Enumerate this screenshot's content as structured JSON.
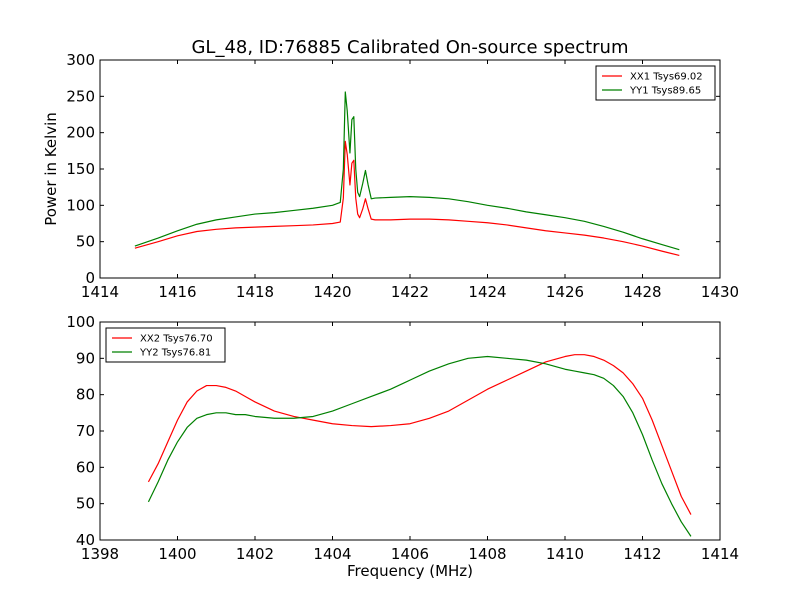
{
  "figure": {
    "title": "GL_48, ID:76885 Calibrated On-source spectrum"
  },
  "chart_data": [
    {
      "type": "line",
      "title": "GL_48, ID:76885 Calibrated On-source spectrum",
      "xlabel": "",
      "ylabel": "Power in Kelvin",
      "xlim": [
        1414,
        1430
      ],
      "ylim": [
        0,
        300
      ],
      "xticks": [
        1414,
        1416,
        1418,
        1420,
        1422,
        1424,
        1426,
        1428,
        1430
      ],
      "yticks": [
        0,
        50,
        100,
        150,
        200,
        250,
        300
      ],
      "grid": false,
      "legend_position": "top-right",
      "series": [
        {
          "name": "XX1 Tsys69.02",
          "color": "#ff0000",
          "x": [
            1414.9,
            1415.5,
            1416,
            1416.5,
            1417,
            1417.5,
            1418,
            1418.5,
            1419,
            1419.5,
            1420,
            1420.2,
            1420.28,
            1420.33,
            1420.38,
            1420.45,
            1420.5,
            1420.55,
            1420.6,
            1420.65,
            1420.7,
            1420.78,
            1420.85,
            1420.92,
            1421.0,
            1421.1,
            1421.5,
            1422,
            1422.5,
            1423,
            1423.5,
            1424,
            1424.5,
            1425,
            1425.5,
            1426,
            1426.5,
            1427,
            1427.5,
            1428,
            1428.5,
            1428.95
          ],
          "values": [
            41,
            50,
            58,
            64,
            67,
            69,
            70,
            71,
            72,
            73,
            75,
            77,
            110,
            188,
            170,
            128,
            158,
            162,
            110,
            88,
            83,
            95,
            109,
            95,
            81,
            80,
            80,
            81,
            81,
            80,
            78,
            76,
            73,
            69,
            65,
            62,
            59,
            55,
            50,
            44,
            37,
            31
          ]
        },
        {
          "name": "YY1 Tsys89.65",
          "color": "#008000",
          "x": [
            1414.9,
            1415.5,
            1416,
            1416.5,
            1417,
            1417.5,
            1418,
            1418.5,
            1419,
            1419.5,
            1420,
            1420.2,
            1420.28,
            1420.33,
            1420.38,
            1420.45,
            1420.5,
            1420.55,
            1420.6,
            1420.65,
            1420.7,
            1420.78,
            1420.85,
            1420.92,
            1421.0,
            1421.1,
            1421.5,
            1422,
            1422.5,
            1423,
            1423.5,
            1424,
            1424.5,
            1425,
            1425.5,
            1426,
            1426.5,
            1427,
            1427.5,
            1428,
            1428.5,
            1428.95
          ],
          "values": [
            44,
            55,
            65,
            74,
            80,
            84,
            88,
            90,
            93,
            96,
            100,
            104,
            150,
            256,
            230,
            172,
            218,
            222,
            150,
            118,
            112,
            130,
            148,
            128,
            109,
            110,
            111,
            112,
            111,
            109,
            105,
            100,
            96,
            91,
            87,
            83,
            78,
            71,
            63,
            54,
            46,
            39
          ]
        }
      ]
    },
    {
      "type": "line",
      "title": "",
      "xlabel": "Frequency (MHz)",
      "ylabel": "",
      "xlim": [
        1398,
        1414
      ],
      "ylim": [
        40,
        100
      ],
      "xticks": [
        1398,
        1400,
        1402,
        1404,
        1406,
        1408,
        1410,
        1412,
        1414
      ],
      "yticks": [
        40,
        50,
        60,
        70,
        80,
        90,
        100
      ],
      "grid": false,
      "legend_position": "top-left",
      "series": [
        {
          "name": "XX2 Tsys76.70",
          "color": "#ff0000",
          "x": [
            1399.25,
            1399.5,
            1399.75,
            1400,
            1400.25,
            1400.5,
            1400.75,
            1401,
            1401.25,
            1401.5,
            1401.75,
            1402,
            1402.5,
            1403,
            1403.5,
            1404,
            1404.5,
            1405,
            1405.5,
            1406,
            1406.5,
            1407,
            1407.5,
            1408,
            1408.5,
            1409,
            1409.5,
            1410,
            1410.25,
            1410.5,
            1410.75,
            1411,
            1411.25,
            1411.5,
            1411.75,
            1412,
            1412.25,
            1412.5,
            1412.75,
            1413,
            1413.25
          ],
          "values": [
            56,
            61,
            67,
            73,
            78,
            81,
            82.5,
            82.5,
            82,
            81,
            79.5,
            78,
            75.5,
            74,
            73,
            72,
            71.5,
            71.2,
            71.5,
            72,
            73.5,
            75.5,
            78.5,
            81.5,
            84,
            86.5,
            89,
            90.5,
            91,
            91,
            90.5,
            89.5,
            88,
            86,
            83,
            79,
            73,
            66,
            59,
            52,
            47
          ]
        },
        {
          "name": "YY2 Tsys76.81",
          "color": "#008000",
          "x": [
            1399.25,
            1399.5,
            1399.75,
            1400,
            1400.25,
            1400.5,
            1400.75,
            1401,
            1401.25,
            1401.5,
            1401.75,
            1402,
            1402.5,
            1403,
            1403.5,
            1404,
            1404.5,
            1405,
            1405.5,
            1406,
            1406.5,
            1407,
            1407.5,
            1408,
            1408.5,
            1409,
            1409.5,
            1410,
            1410.25,
            1410.5,
            1410.75,
            1411,
            1411.25,
            1411.5,
            1411.75,
            1412,
            1412.25,
            1412.5,
            1412.75,
            1413,
            1413.25
          ],
          "values": [
            50.5,
            56,
            62,
            67,
            71,
            73.5,
            74.5,
            75,
            75,
            74.5,
            74.5,
            74,
            73.5,
            73.5,
            74,
            75.5,
            77.5,
            79.5,
            81.5,
            84,
            86.5,
            88.5,
            90,
            90.5,
            90,
            89.5,
            88.5,
            87,
            86.5,
            86,
            85.5,
            84.5,
            82.5,
            79.5,
            75,
            69,
            62,
            55.5,
            50,
            45,
            41
          ]
        }
      ]
    }
  ]
}
